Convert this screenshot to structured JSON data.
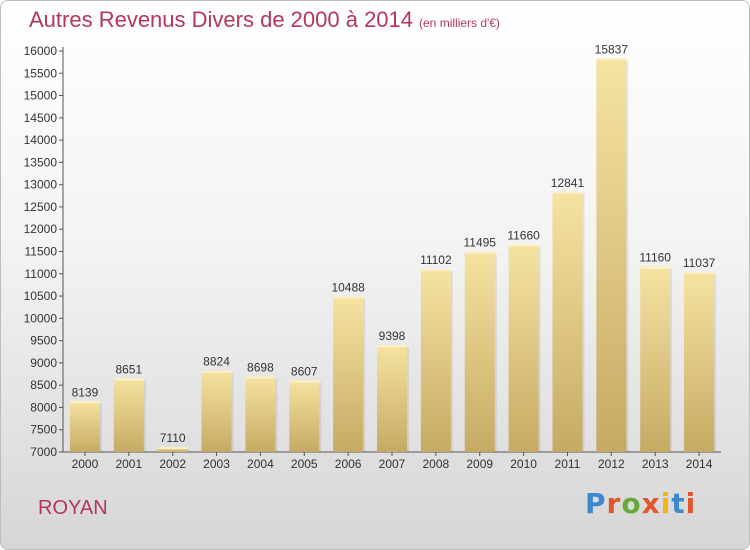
{
  "header": {
    "title": "Autres Revenus Divers de 2000 à 2014",
    "unit": "(en milliers d'€)"
  },
  "footer": {
    "city": "ROYAN",
    "brand": "Proxiti"
  },
  "colors": {
    "title": "#b5365a",
    "bar_light": "#f6e3a2",
    "bar_dark": "#c6aa63",
    "brand_letters": [
      "#3d87cc",
      "#e2562c",
      "#69a93c",
      "#e2562c",
      "#f0b416",
      "#3d87cc",
      "#e2562c"
    ]
  },
  "chart_data": {
    "type": "bar",
    "categories": [
      "2000",
      "2001",
      "2002",
      "2003",
      "2004",
      "2005",
      "2006",
      "2007",
      "2008",
      "2009",
      "2010",
      "2011",
      "2012",
      "2013",
      "2014"
    ],
    "values": [
      8139,
      8651,
      7110,
      8824,
      8698,
      8607,
      10488,
      9398,
      11102,
      11495,
      11660,
      12841,
      15837,
      11160,
      11037
    ],
    "title": "Autres Revenus Divers de 2000 à 2014",
    "xlabel": "",
    "ylabel": "",
    "ylim": [
      7000,
      16000
    ],
    "yticks": [
      7000,
      7500,
      8000,
      8500,
      9000,
      9500,
      10000,
      10500,
      11000,
      11500,
      12000,
      12500,
      13000,
      13500,
      14000,
      14500,
      15000,
      15500,
      16000
    ],
    "grid": false,
    "data_labels": true
  }
}
